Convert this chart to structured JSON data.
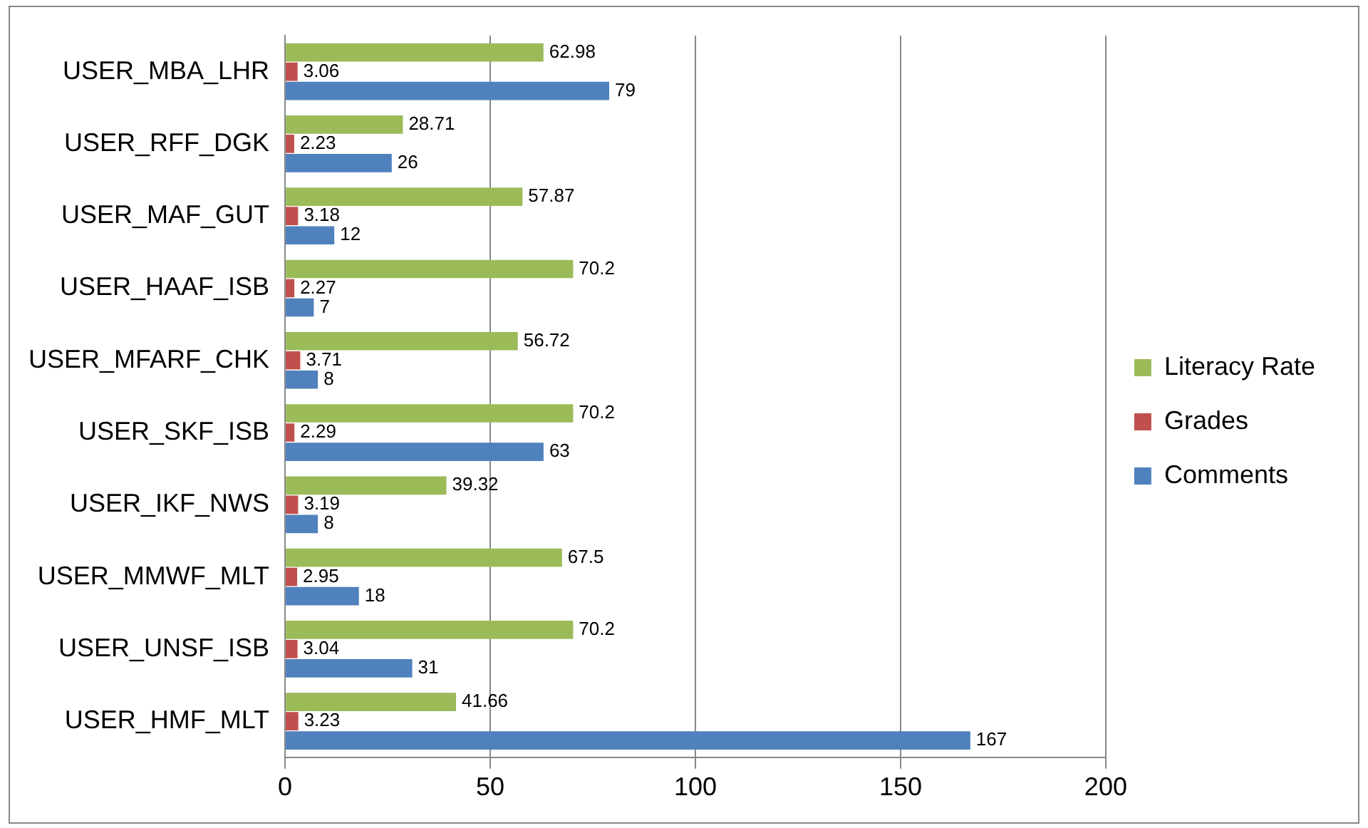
{
  "chart_data": {
    "type": "bar",
    "orientation": "horizontal",
    "categories": [
      "USER_MBA_LHR",
      "USER_RFF_DGK",
      "USER_MAF_GUT",
      "USER_HAAF_ISB",
      "USER_MFARF_CHK",
      "USER_SKF_ISB",
      "USER_IKF_NWS",
      "USER_MMWF_MLT",
      "USER_UNSF_ISB",
      "USER_HMF_MLT"
    ],
    "series": [
      {
        "name": "Literacy Rate",
        "color": "#9bbb59",
        "values": [
          62.98,
          28.71,
          57.87,
          70.2,
          56.72,
          70.2,
          39.32,
          67.5,
          70.2,
          41.66
        ]
      },
      {
        "name": "Grades",
        "color": "#c0504d",
        "values": [
          3.06,
          2.23,
          3.18,
          2.27,
          3.71,
          2.29,
          3.19,
          2.95,
          3.04,
          3.23
        ]
      },
      {
        "name": "Comments",
        "color": "#4f81bd",
        "values": [
          79,
          26,
          12,
          7,
          8,
          63,
          8,
          18,
          31,
          167
        ]
      }
    ],
    "xlim": [
      0,
      200
    ],
    "xticks": [
      0,
      50,
      100,
      150,
      200
    ],
    "grid": "x",
    "legend": "right",
    "data_labels": true
  }
}
